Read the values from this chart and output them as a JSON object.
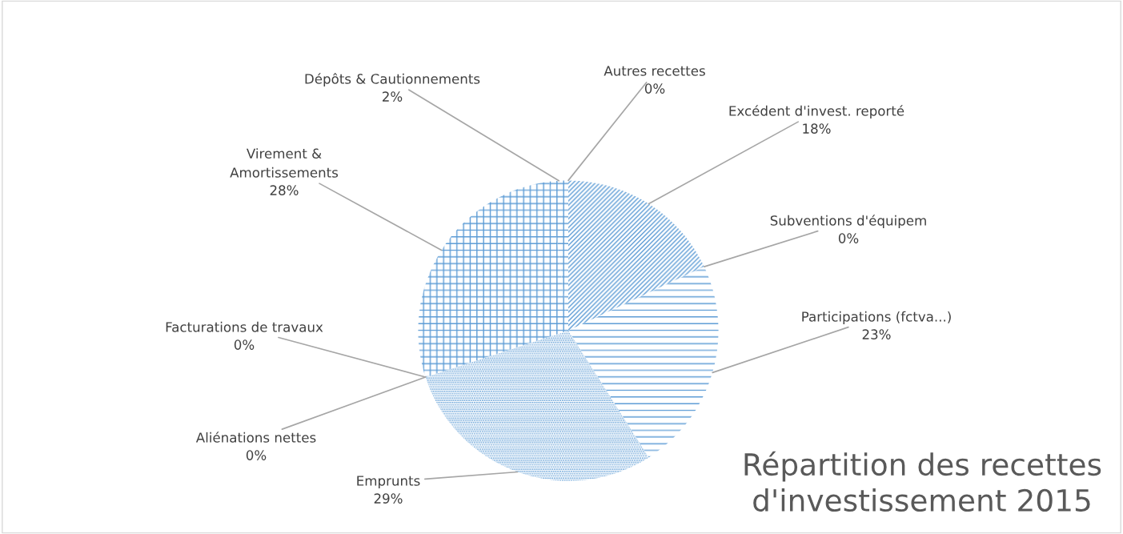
{
  "chart_data": {
    "type": "pie",
    "title": "Répartition des recettes d'investissement 2015",
    "categories": [
      "Excédent d'invest. reporté",
      "Subventions d'équipem",
      "Participations (fctva...)",
      "Emprunts",
      "Aliénations nettes",
      "Facturations de travaux",
      "Virement & Amortissements",
      "Dépôts & Cautionnements",
      "Autres recettes"
    ],
    "values": [
      18,
      0,
      23,
      29,
      0,
      0,
      28,
      2,
      0
    ],
    "colors": [
      "#5b9bd5",
      "#5b9bd5",
      "#5b9bd5",
      "#5b9bd5",
      "#5b9bd5",
      "#5b9bd5",
      "#5b9bd5",
      "#5b9bd5",
      "#5b9bd5"
    ],
    "value_labels": [
      "18%",
      "0%",
      "23%",
      "29%",
      "0%",
      "0%",
      "28%",
      "2%",
      "0%"
    ],
    "legend": false
  }
}
